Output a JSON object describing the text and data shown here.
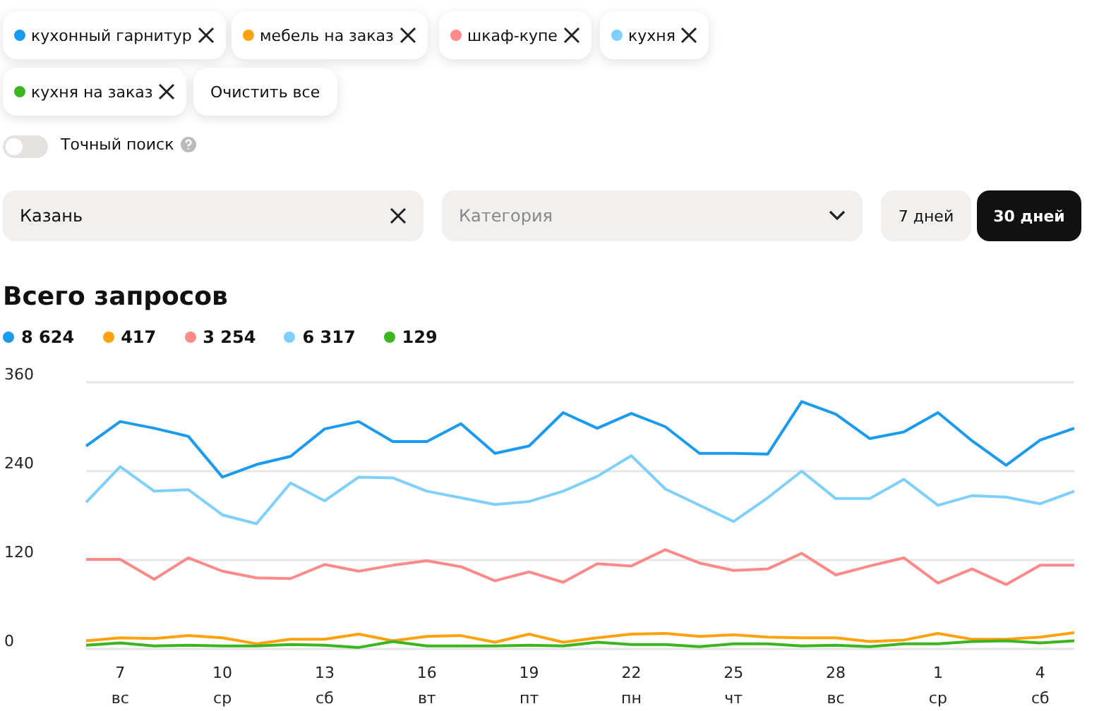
{
  "chart_data": {
    "type": "line",
    "title": "Всего запросов",
    "legend": "top left",
    "grid": "y",
    "marker": "none",
    "line_style": "solid",
    "categories": [
      null,
      "7\nвс",
      null,
      null,
      "10\nср",
      null,
      null,
      "13\nсб",
      null,
      null,
      "16\nвт",
      null,
      null,
      "19\nпт",
      null,
      null,
      "22\nпн",
      null,
      null,
      "25\nчт",
      null,
      null,
      "28\nвс",
      null,
      null,
      "1\nср",
      null,
      null,
      "4\nсб",
      null
    ],
    "ylim": [
      0,
      360
    ],
    "yticks": [
      0,
      120,
      240,
      360
    ],
    "series": [
      {
        "name": "кухонный гарнитур",
        "color": "#1a9bf0",
        "values": [
          274,
          307,
          298,
          287,
          232,
          249,
          260,
          297,
          307,
          280,
          280,
          304,
          264,
          274,
          319,
          298,
          318,
          300,
          264,
          264,
          263,
          334,
          317,
          284,
          293,
          319,
          281,
          248,
          282,
          298
        ]
      },
      {
        "name": "мебель на заказ",
        "color": "#ffa20f",
        "values": [
          11,
          15,
          14,
          18,
          15,
          7,
          13,
          13,
          20,
          11,
          17,
          18,
          9,
          20,
          9,
          15,
          20,
          21,
          17,
          19,
          16,
          15,
          15,
          10,
          12,
          21,
          13,
          13,
          16,
          22
        ]
      },
      {
        "name": "шкаф-купе",
        "color": "#ff8a8a",
        "values": [
          121,
          121,
          94,
          123,
          105,
          96,
          95,
          114,
          105,
          113,
          119,
          111,
          92,
          104,
          90,
          115,
          112,
          134,
          116,
          106,
          108,
          129,
          100,
          112,
          123,
          89,
          108,
          87,
          113,
          113
        ]
      },
      {
        "name": "кухня",
        "color": "#7fd0ff",
        "values": [
          198,
          246,
          213,
          215,
          181,
          169,
          224,
          200,
          232,
          231,
          213,
          204,
          195,
          199,
          213,
          233,
          261,
          216,
          194,
          172,
          204,
          240,
          203,
          203,
          229,
          194,
          207,
          205,
          196,
          213
        ]
      },
      {
        "name": "кухня на заказ",
        "color": "#3cb521",
        "values": [
          5,
          8,
          4,
          5,
          4,
          4,
          6,
          5,
          2,
          10,
          4,
          4,
          4,
          5,
          4,
          9,
          6,
          6,
          3,
          7,
          7,
          4,
          5,
          3,
          7,
          7,
          10,
          11,
          8,
          11
        ]
      }
    ],
    "annotations": [
      "8 624",
      "417",
      "3 254",
      "6 317",
      "129",
      "Очистить все",
      "Точный поиск",
      "Казань",
      "Категория",
      "7 дней",
      "30 дней"
    ]
  }
}
